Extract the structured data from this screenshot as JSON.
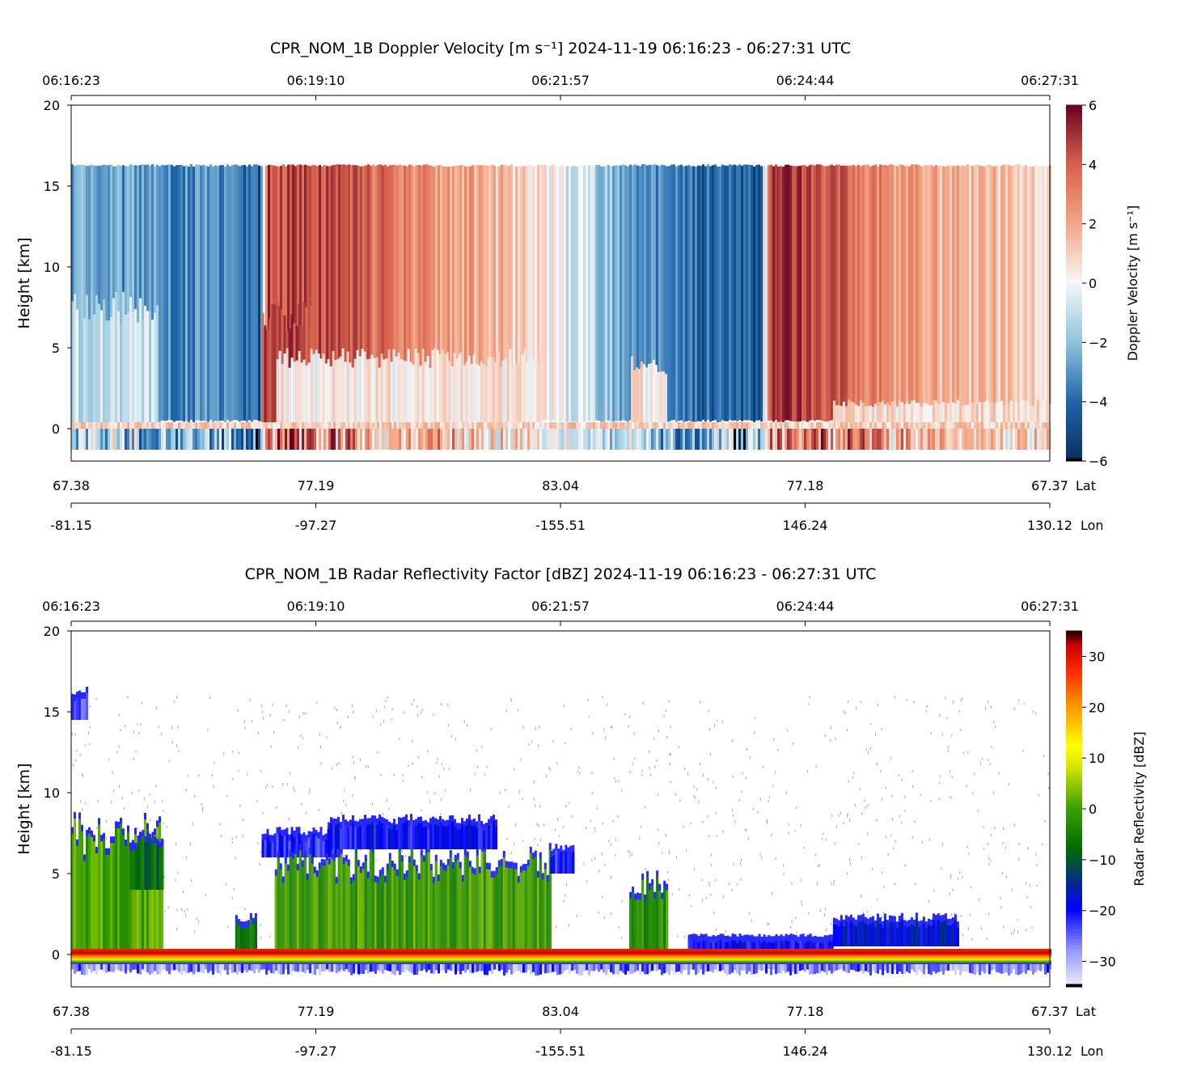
{
  "chart_data": [
    {
      "type": "heatmap",
      "id": "velocity",
      "title": "CPR_NOM_1B Doppler Velocity [m s⁻¹]    2024-11-19    06:16:23 - 06:27:31 UTC",
      "ylabel": "Height [km]",
      "ylim": [
        -2,
        20
      ],
      "yticks": [
        0,
        5,
        10,
        15,
        20
      ],
      "time_ticks": [
        {
          "t": 0,
          "label": "06:16:23"
        },
        {
          "t": 167,
          "label": "06:19:10"
        },
        {
          "t": 334,
          "label": "06:21:57"
        },
        {
          "t": 501,
          "label": "06:24:44"
        },
        {
          "t": 668,
          "label": "06:27:31"
        }
      ],
      "lat_ticks": [
        "67.38",
        "77.19",
        "83.04",
        "77.18",
        "67.37"
      ],
      "lat_label": "Lat",
      "lon_ticks": [
        "-81.15",
        "-97.27",
        "-155.51",
        "146.24",
        "130.12"
      ],
      "lon_label": "Lon",
      "colorbar": {
        "label": "Doppler Velocity [m s⁻¹]",
        "range": [
          -6,
          6
        ],
        "ticks": [
          "6",
          "4",
          "2",
          "0",
          "−2",
          "−4",
          "−6"
        ],
        "tick_values": [
          6,
          4,
          2,
          0,
          -2,
          -4,
          -6
        ],
        "colormap": "RdBu_r"
      },
      "data_top_km": 16.2,
      "upper_profile_t_v": [
        [
          0,
          -2.5
        ],
        [
          60,
          -3
        ],
        [
          110,
          -3.5
        ],
        [
          128,
          -4.5
        ],
        [
          134,
          4.5
        ],
        [
          170,
          4.5
        ],
        [
          230,
          3
        ],
        [
          290,
          1.5
        ],
        [
          320,
          0.3
        ],
        [
          345,
          -0.8
        ],
        [
          380,
          -2.5
        ],
        [
          410,
          -3.8
        ],
        [
          470,
          -4.5
        ],
        [
          476,
          5
        ],
        [
          520,
          4
        ],
        [
          560,
          2.5
        ],
        [
          620,
          1.5
        ],
        [
          668,
          1
        ]
      ],
      "lower_regions": [
        {
          "t0": 0,
          "t1": 58,
          "base": 0.4,
          "top": 8.5,
          "v": -1
        },
        {
          "t0": 130,
          "t1": 165,
          "base": 0.4,
          "top": 8,
          "v": 4.5
        },
        {
          "t0": 140,
          "t1": 320,
          "base": 0.4,
          "top": 5,
          "v": 0.3
        },
        {
          "t0": 382,
          "t1": 406,
          "base": 0.4,
          "top": 4.5,
          "v": 0.3
        },
        {
          "t0": 520,
          "t1": 668,
          "base": 0.4,
          "top": 1.8,
          "v": 0.6
        }
      ],
      "surface_layer": {
        "base": -1.3,
        "top": 0
      }
    },
    {
      "type": "heatmap",
      "id": "reflectivity",
      "title": "CPR_NOM_1B Radar Reflectivity Factor [dBZ]    2024-11-19    06:16:23 - 06:27:31 UTC",
      "ylabel": "Height [km]",
      "ylim": [
        -2,
        20
      ],
      "yticks": [
        0,
        5,
        10,
        15,
        20
      ],
      "time_ticks": [
        {
          "t": 0,
          "label": "06:16:23"
        },
        {
          "t": 167,
          "label": "06:19:10"
        },
        {
          "t": 334,
          "label": "06:21:57"
        },
        {
          "t": 501,
          "label": "06:24:44"
        },
        {
          "t": 668,
          "label": "06:27:31"
        }
      ],
      "lat_ticks": [
        "67.38",
        "77.19",
        "83.04",
        "77.18",
        "67.37"
      ],
      "lat_label": "Lat",
      "lon_ticks": [
        "-81.15",
        "-97.27",
        "-155.51",
        "146.24",
        "130.12"
      ],
      "lon_label": "Lon",
      "colorbar": {
        "label": "Radar Reflectivity [dBZ]",
        "range": [
          -35,
          35
        ],
        "ticks": [
          "30",
          "20",
          "10",
          "0",
          "−10",
          "−20",
          "−30"
        ],
        "tick_values": [
          30,
          20,
          10,
          0,
          -10,
          -20,
          -30
        ],
        "colormap": "radar"
      },
      "clouds": [
        {
          "t0": 0,
          "t1": 62,
          "base": 0.3,
          "top": 8.5,
          "dbz": 0
        },
        {
          "t0": 40,
          "t1": 62,
          "base": 4,
          "top": 7.5,
          "dbz": -8
        },
        {
          "t0": 112,
          "t1": 126,
          "base": 0.3,
          "top": 2.2,
          "dbz": -5
        },
        {
          "t0": 130,
          "t1": 183,
          "base": 6,
          "top": 7.5,
          "dbz": -22
        },
        {
          "t0": 139,
          "t1": 327,
          "base": 0.3,
          "top": 6.5,
          "dbz": 0
        },
        {
          "t0": 175,
          "t1": 290,
          "base": 6.5,
          "top": 8.3,
          "dbz": -20
        },
        {
          "t0": 327,
          "t1": 343,
          "base": 5,
          "top": 6.5,
          "dbz": -22
        },
        {
          "t0": 381,
          "t1": 407,
          "base": 0.3,
          "top": 4.8,
          "dbz": -2
        },
        {
          "t0": 421,
          "t1": 520,
          "base": 0.3,
          "top": 0.9,
          "dbz": -20
        },
        {
          "t0": 520,
          "t1": 606,
          "base": 0.5,
          "top": 2.2,
          "dbz": -18
        },
        {
          "t0": 0,
          "t1": 10,
          "base": 14.5,
          "top": 16.2,
          "dbz": -25
        }
      ],
      "surface_layer": {
        "base": -1.3,
        "top": 0.3,
        "dbz": 30
      }
    }
  ]
}
